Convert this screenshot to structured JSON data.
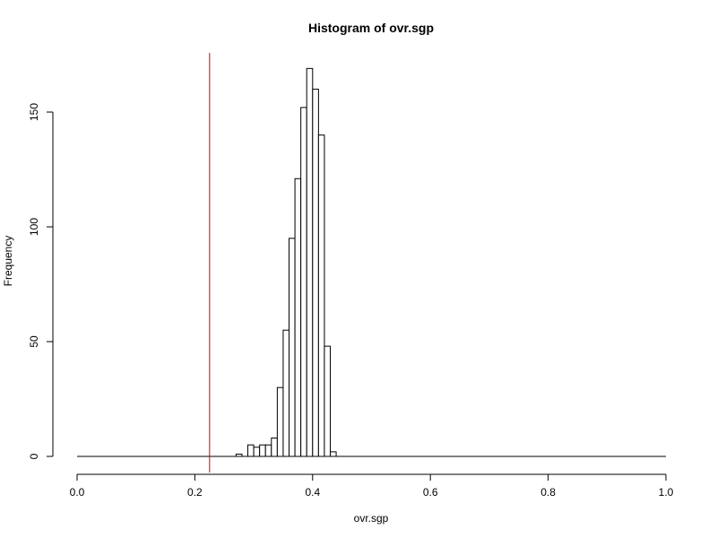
{
  "chart_data": {
    "type": "bar",
    "title": "Histogram of ovr.sgp",
    "xlabel": "ovr.sgp",
    "ylabel": "Frequency",
    "xlim": [
      0,
      1
    ],
    "ylim": [
      0,
      170
    ],
    "xticks": [
      "0.0",
      "0.2",
      "0.4",
      "0.6",
      "0.8",
      "1.0"
    ],
    "yticks": [
      "0",
      "50",
      "100",
      "150"
    ],
    "bin_width": 0.01,
    "bins": [
      {
        "x0": 0.27,
        "x1": 0.28,
        "count": 1
      },
      {
        "x0": 0.28,
        "x1": 0.29,
        "count": 0
      },
      {
        "x0": 0.29,
        "x1": 0.3,
        "count": 5
      },
      {
        "x0": 0.3,
        "x1": 0.31,
        "count": 4
      },
      {
        "x0": 0.31,
        "x1": 0.32,
        "count": 5
      },
      {
        "x0": 0.32,
        "x1": 0.33,
        "count": 5
      },
      {
        "x0": 0.33,
        "x1": 0.34,
        "count": 8
      },
      {
        "x0": 0.34,
        "x1": 0.35,
        "count": 30
      },
      {
        "x0": 0.35,
        "x1": 0.36,
        "count": 55
      },
      {
        "x0": 0.36,
        "x1": 0.37,
        "count": 95
      },
      {
        "x0": 0.37,
        "x1": 0.38,
        "count": 121
      },
      {
        "x0": 0.38,
        "x1": 0.39,
        "count": 152
      },
      {
        "x0": 0.39,
        "x1": 0.4,
        "count": 169
      },
      {
        "x0": 0.4,
        "x1": 0.41,
        "count": 160
      },
      {
        "x0": 0.41,
        "x1": 0.42,
        "count": 140
      },
      {
        "x0": 0.42,
        "x1": 0.43,
        "count": 48
      },
      {
        "x0": 0.43,
        "x1": 0.44,
        "count": 2
      }
    ],
    "reference_line": {
      "x": 0.225,
      "color": "#cc0000"
    },
    "baseline_span": [
      0,
      1
    ],
    "grid": false,
    "legend": "none"
  }
}
